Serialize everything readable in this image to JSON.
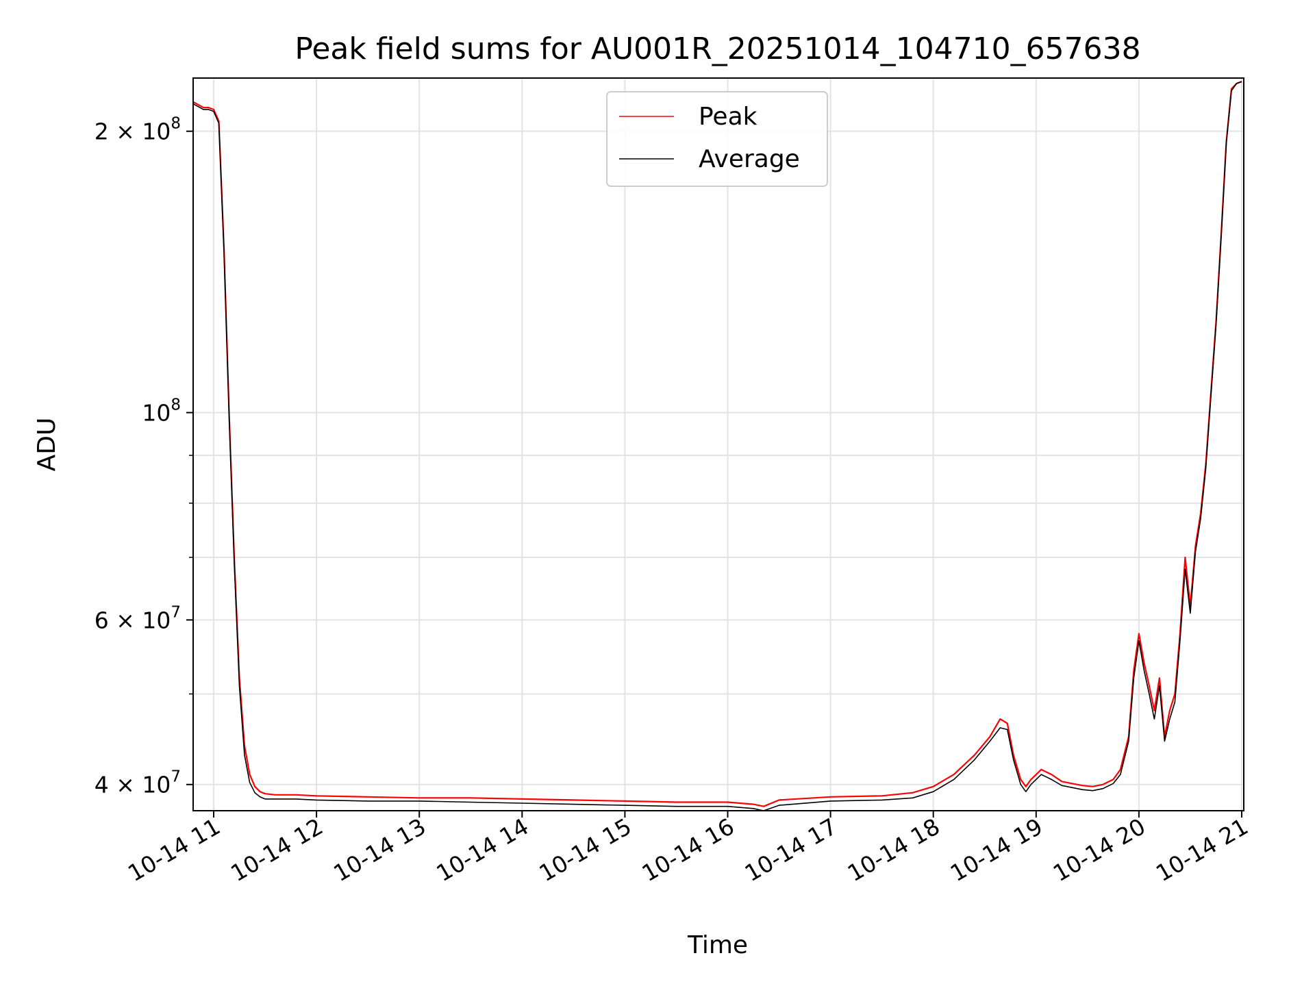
{
  "chart_data": {
    "type": "line",
    "title": "Peak field sums for AU001R_20251014_104710_657638",
    "xlabel": "Time",
    "ylabel": "ADU",
    "yscale": "log",
    "ylim": [
      37500000,
      228000000
    ],
    "xlim": [
      10.8,
      21.02
    ],
    "grid": true,
    "legend_position": "top-center",
    "x_ticks": [
      11,
      12,
      13,
      14,
      15,
      16,
      17,
      18,
      19,
      20,
      21
    ],
    "x_tick_labels": [
      "10-14 11",
      "10-14 12",
      "10-14 13",
      "10-14 14",
      "10-14 15",
      "10-14 16",
      "10-14 17",
      "10-14 18",
      "10-14 19",
      "10-14 20",
      "10-14 21"
    ],
    "y_major_ticks": [
      40000000,
      60000000,
      100000000,
      200000000
    ],
    "y_major_labels": [
      {
        "mantissa": "4",
        "exponent": "7"
      },
      {
        "mantissa": "6",
        "exponent": "7"
      },
      {
        "mantissa": "",
        "exponent": "8"
      },
      {
        "mantissa": "2",
        "exponent": "8"
      }
    ],
    "y_minor_ticks": [
      50000000,
      70000000,
      80000000,
      90000000
    ],
    "series": [
      {
        "name": "Peak",
        "color": "#ff0000",
        "x": [
          10.8,
          10.9,
          10.95,
          11.0,
          11.05,
          11.1,
          11.15,
          11.2,
          11.25,
          11.3,
          11.35,
          11.4,
          11.45,
          11.5,
          11.6,
          11.8,
          12.0,
          12.5,
          13.0,
          13.5,
          14.0,
          14.5,
          15.0,
          15.5,
          16.0,
          16.25,
          16.35,
          16.5,
          17.0,
          17.5,
          17.8,
          18.0,
          18.2,
          18.4,
          18.55,
          18.65,
          18.72,
          18.78,
          18.85,
          18.9,
          18.95,
          19.05,
          19.15,
          19.25,
          19.35,
          19.45,
          19.55,
          19.65,
          19.75,
          19.82,
          19.9,
          19.95,
          20.0,
          20.05,
          20.1,
          20.15,
          20.2,
          20.25,
          20.3,
          20.35,
          20.4,
          20.45,
          20.5,
          20.55,
          20.6,
          20.65,
          20.7,
          20.75,
          20.8,
          20.85,
          20.9,
          20.95,
          21.0
        ],
        "values": [
          215000000,
          212000000,
          212000000,
          211000000,
          205000000,
          150000000,
          100000000,
          70000000,
          52000000,
          44000000,
          41000000,
          39800000,
          39300000,
          39100000,
          39000000,
          39000000,
          38900000,
          38800000,
          38700000,
          38700000,
          38600000,
          38500000,
          38400000,
          38300000,
          38300000,
          38100000,
          37900000,
          38500000,
          38800000,
          38900000,
          39200000,
          39800000,
          41000000,
          43000000,
          45000000,
          47000000,
          46500000,
          43000000,
          40500000,
          39800000,
          40500000,
          41500000,
          41000000,
          40300000,
          40100000,
          39900000,
          39800000,
          40000000,
          40500000,
          41500000,
          45000000,
          53000000,
          58000000,
          54000000,
          51000000,
          48000000,
          52000000,
          45000000,
          48000000,
          50000000,
          58000000,
          70000000,
          62000000,
          72000000,
          78000000,
          88000000,
          105000000,
          125000000,
          155000000,
          195000000,
          222000000,
          225000000,
          226000000
        ]
      },
      {
        "name": "Average",
        "color": "#000000",
        "x": [
          10.8,
          10.9,
          10.95,
          11.0,
          11.05,
          11.1,
          11.15,
          11.2,
          11.25,
          11.3,
          11.35,
          11.4,
          11.45,
          11.5,
          11.6,
          11.8,
          12.0,
          12.5,
          13.0,
          13.5,
          14.0,
          14.5,
          15.0,
          15.5,
          16.0,
          16.25,
          16.35,
          16.5,
          17.0,
          17.5,
          17.8,
          18.0,
          18.2,
          18.4,
          18.55,
          18.65,
          18.72,
          18.78,
          18.85,
          18.9,
          18.95,
          19.05,
          19.15,
          19.25,
          19.35,
          19.45,
          19.55,
          19.65,
          19.75,
          19.82,
          19.9,
          19.95,
          20.0,
          20.05,
          20.1,
          20.15,
          20.2,
          20.25,
          20.3,
          20.35,
          20.4,
          20.45,
          20.5,
          20.55,
          20.6,
          20.65,
          20.7,
          20.75,
          20.8,
          20.85,
          20.9,
          20.95,
          21.0
        ],
        "values": [
          214000000,
          211000000,
          211000000,
          210000000,
          204000000,
          149000000,
          99000000,
          69000000,
          51000000,
          43000000,
          40200000,
          39200000,
          38800000,
          38600000,
          38600000,
          38600000,
          38500000,
          38400000,
          38400000,
          38300000,
          38200000,
          38100000,
          38000000,
          37900000,
          37900000,
          37700000,
          37500000,
          38000000,
          38400000,
          38500000,
          38700000,
          39300000,
          40500000,
          42500000,
          44500000,
          46000000,
          45800000,
          42500000,
          40000000,
          39300000,
          40000000,
          41000000,
          40500000,
          39900000,
          39700000,
          39500000,
          39400000,
          39600000,
          40100000,
          41000000,
          44500000,
          52000000,
          57000000,
          53000000,
          50000000,
          47000000,
          51000000,
          44500000,
          47000000,
          49000000,
          57000000,
          68000000,
          61000000,
          71000000,
          77000000,
          87000000,
          104000000,
          124000000,
          154000000,
          194000000,
          221000000,
          225000000,
          226000000
        ]
      }
    ]
  }
}
